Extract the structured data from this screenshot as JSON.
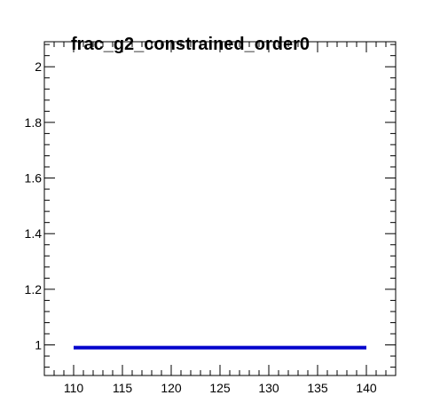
{
  "chart_data": {
    "type": "line",
    "title": "frac_g2_constrained_order0",
    "xlabel": "",
    "ylabel": "",
    "xlim": [
      107,
      143
    ],
    "ylim": [
      0.89,
      2.09
    ],
    "x_ticks": [
      110,
      115,
      120,
      125,
      130,
      135,
      140
    ],
    "x_tick_labels": [
      "110",
      "115",
      "120",
      "125",
      "130",
      "135",
      "140"
    ],
    "y_ticks": [
      1,
      1.2,
      1.4,
      1.6,
      1.8,
      2
    ],
    "y_tick_labels": [
      "1",
      "1.2",
      "1.4",
      "1.6",
      "1.8",
      "2"
    ],
    "grid": false,
    "series": [
      {
        "color": "#0000cc",
        "x": [
          110,
          140
        ],
        "y": [
          0.99,
          0.99
        ]
      }
    ]
  }
}
